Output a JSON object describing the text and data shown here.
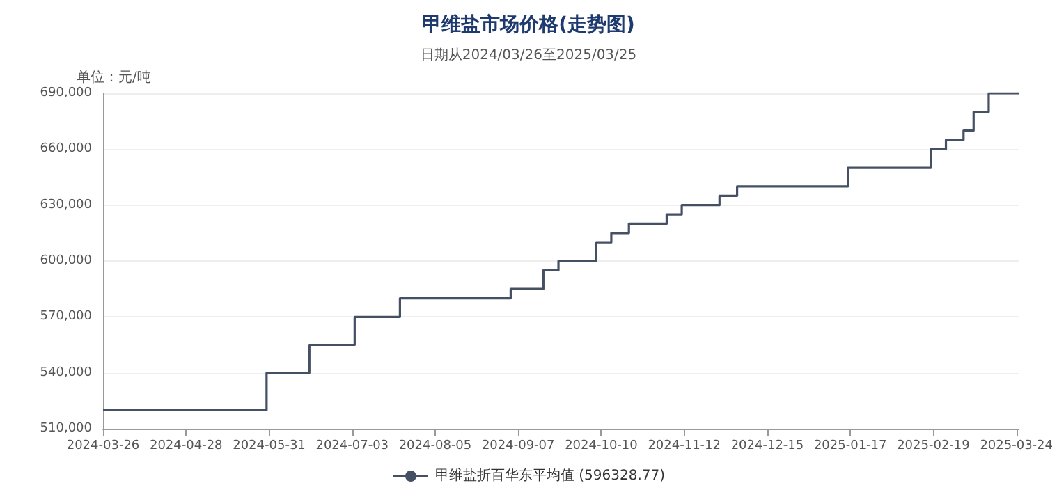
{
  "chart_data": {
    "type": "step",
    "title": "甲维盐市场价格(走势图)",
    "subtitle": "日期从2024/03/26至2025/03/25",
    "ylabel": "单位：元/吨",
    "series": [
      {
        "name": "甲维盐折百华东平均值 (596328.77)",
        "color": "#465064",
        "x": [
          "2024-03-26",
          "2024-05-30",
          "2024-06-16",
          "2024-07-04",
          "2024-07-22",
          "2024-09-04",
          "2024-09-17",
          "2024-09-23",
          "2024-10-08",
          "2024-10-14",
          "2024-10-21",
          "2024-11-05",
          "2024-11-11",
          "2024-11-26",
          "2024-12-03",
          "2025-01-16",
          "2025-02-18",
          "2025-02-24",
          "2025-03-03",
          "2025-03-07",
          "2025-03-13",
          "2025-03-25"
        ],
        "values": [
          520000,
          540000,
          555000,
          570000,
          580000,
          585000,
          595000,
          600000,
          610000,
          615000,
          620000,
          625000,
          630000,
          635000,
          640000,
          650000,
          660000,
          665000,
          670000,
          680000,
          690000,
          690000
        ]
      }
    ],
    "xlim": [
      "2024-03-26",
      "2025-03-25"
    ],
    "xticks": [
      "2024-03-26",
      "2024-04-28",
      "2024-05-31",
      "2024-07-03",
      "2024-08-05",
      "2024-09-07",
      "2024-10-10",
      "2024-11-12",
      "2024-12-15",
      "2025-01-17",
      "2025-02-19",
      "2025-03-24"
    ],
    "ylim": [
      510000,
      690000
    ],
    "yticks": [
      {
        "value": 510000,
        "label": "510,000"
      },
      {
        "value": 540000,
        "label": "540,000"
      },
      {
        "value": 570000,
        "label": "570,000"
      },
      {
        "value": 600000,
        "label": "600,000"
      },
      {
        "value": 630000,
        "label": "630,000"
      },
      {
        "value": 660000,
        "label": "660,000"
      },
      {
        "value": 690000,
        "label": "690,000"
      }
    ],
    "grid": "y",
    "legend": "bottom",
    "marker": "none",
    "line_style": "solid"
  }
}
